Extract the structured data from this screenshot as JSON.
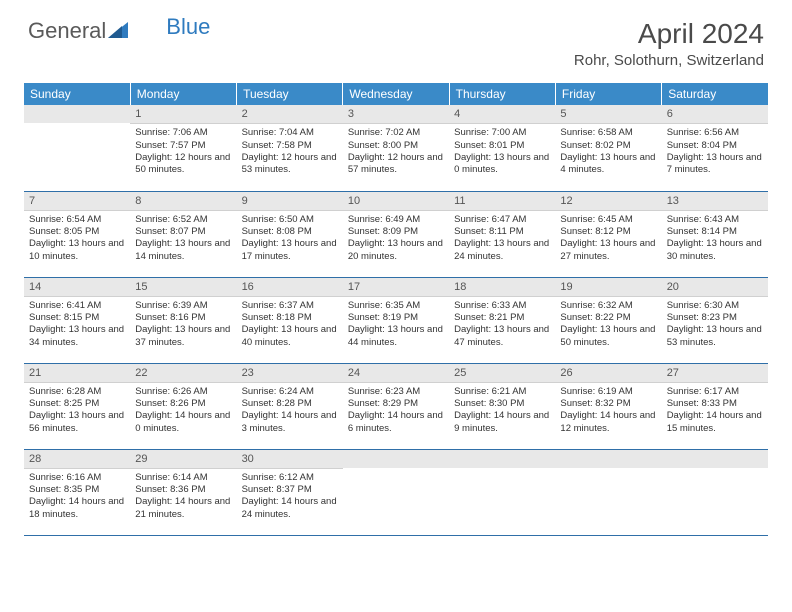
{
  "logo": {
    "text_gray": "General",
    "text_blue": "Blue"
  },
  "title": "April 2024",
  "location": "Rohr, Solothurn, Switzerland",
  "header_bg": "#3a8ac8",
  "day_headers": [
    "Sunday",
    "Monday",
    "Tuesday",
    "Wednesday",
    "Thursday",
    "Friday",
    "Saturday"
  ],
  "weeks": [
    [
      null,
      {
        "n": "1",
        "sr": "7:06 AM",
        "ss": "7:57 PM",
        "dl": "12 hours and 50 minutes."
      },
      {
        "n": "2",
        "sr": "7:04 AM",
        "ss": "7:58 PM",
        "dl": "12 hours and 53 minutes."
      },
      {
        "n": "3",
        "sr": "7:02 AM",
        "ss": "8:00 PM",
        "dl": "12 hours and 57 minutes."
      },
      {
        "n": "4",
        "sr": "7:00 AM",
        "ss": "8:01 PM",
        "dl": "13 hours and 0 minutes."
      },
      {
        "n": "5",
        "sr": "6:58 AM",
        "ss": "8:02 PM",
        "dl": "13 hours and 4 minutes."
      },
      {
        "n": "6",
        "sr": "6:56 AM",
        "ss": "8:04 PM",
        "dl": "13 hours and 7 minutes."
      }
    ],
    [
      {
        "n": "7",
        "sr": "6:54 AM",
        "ss": "8:05 PM",
        "dl": "13 hours and 10 minutes."
      },
      {
        "n": "8",
        "sr": "6:52 AM",
        "ss": "8:07 PM",
        "dl": "13 hours and 14 minutes."
      },
      {
        "n": "9",
        "sr": "6:50 AM",
        "ss": "8:08 PM",
        "dl": "13 hours and 17 minutes."
      },
      {
        "n": "10",
        "sr": "6:49 AM",
        "ss": "8:09 PM",
        "dl": "13 hours and 20 minutes."
      },
      {
        "n": "11",
        "sr": "6:47 AM",
        "ss": "8:11 PM",
        "dl": "13 hours and 24 minutes."
      },
      {
        "n": "12",
        "sr": "6:45 AM",
        "ss": "8:12 PM",
        "dl": "13 hours and 27 minutes."
      },
      {
        "n": "13",
        "sr": "6:43 AM",
        "ss": "8:14 PM",
        "dl": "13 hours and 30 minutes."
      }
    ],
    [
      {
        "n": "14",
        "sr": "6:41 AM",
        "ss": "8:15 PM",
        "dl": "13 hours and 34 minutes."
      },
      {
        "n": "15",
        "sr": "6:39 AM",
        "ss": "8:16 PM",
        "dl": "13 hours and 37 minutes."
      },
      {
        "n": "16",
        "sr": "6:37 AM",
        "ss": "8:18 PM",
        "dl": "13 hours and 40 minutes."
      },
      {
        "n": "17",
        "sr": "6:35 AM",
        "ss": "8:19 PM",
        "dl": "13 hours and 44 minutes."
      },
      {
        "n": "18",
        "sr": "6:33 AM",
        "ss": "8:21 PM",
        "dl": "13 hours and 47 minutes."
      },
      {
        "n": "19",
        "sr": "6:32 AM",
        "ss": "8:22 PM",
        "dl": "13 hours and 50 minutes."
      },
      {
        "n": "20",
        "sr": "6:30 AM",
        "ss": "8:23 PM",
        "dl": "13 hours and 53 minutes."
      }
    ],
    [
      {
        "n": "21",
        "sr": "6:28 AM",
        "ss": "8:25 PM",
        "dl": "13 hours and 56 minutes."
      },
      {
        "n": "22",
        "sr": "6:26 AM",
        "ss": "8:26 PM",
        "dl": "14 hours and 0 minutes."
      },
      {
        "n": "23",
        "sr": "6:24 AM",
        "ss": "8:28 PM",
        "dl": "14 hours and 3 minutes."
      },
      {
        "n": "24",
        "sr": "6:23 AM",
        "ss": "8:29 PM",
        "dl": "14 hours and 6 minutes."
      },
      {
        "n": "25",
        "sr": "6:21 AM",
        "ss": "8:30 PM",
        "dl": "14 hours and 9 minutes."
      },
      {
        "n": "26",
        "sr": "6:19 AM",
        "ss": "8:32 PM",
        "dl": "14 hours and 12 minutes."
      },
      {
        "n": "27",
        "sr": "6:17 AM",
        "ss": "8:33 PM",
        "dl": "14 hours and 15 minutes."
      }
    ],
    [
      {
        "n": "28",
        "sr": "6:16 AM",
        "ss": "8:35 PM",
        "dl": "14 hours and 18 minutes."
      },
      {
        "n": "29",
        "sr": "6:14 AM",
        "ss": "8:36 PM",
        "dl": "14 hours and 21 minutes."
      },
      {
        "n": "30",
        "sr": "6:12 AM",
        "ss": "8:37 PM",
        "dl": "14 hours and 24 minutes."
      },
      null,
      null,
      null,
      null
    ]
  ],
  "labels": {
    "sunrise": "Sunrise:",
    "sunset": "Sunset:",
    "daylight": "Daylight:"
  }
}
